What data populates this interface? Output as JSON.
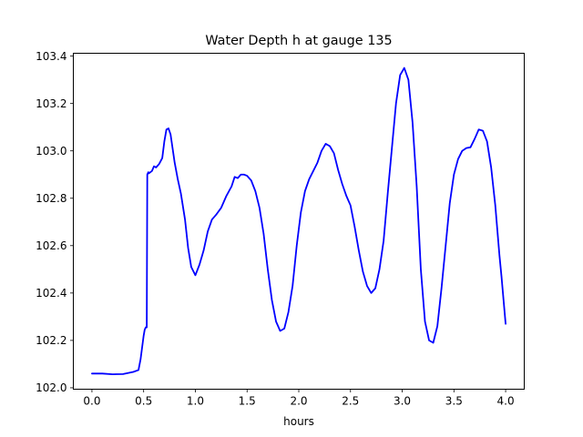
{
  "chart_data": {
    "type": "line",
    "title": "Water Depth h at gauge 135",
    "xlabel": "hours",
    "ylabel": "",
    "xlim": [
      -0.18,
      4.18
    ],
    "ylim": [
      101.994,
      103.412
    ],
    "x_ticks": [
      "0.0",
      "0.5",
      "1.0",
      "1.5",
      "2.0",
      "2.5",
      "3.0",
      "3.5",
      "4.0"
    ],
    "y_ticks": [
      "102.0",
      "102.2",
      "102.4",
      "102.6",
      "102.8",
      "103.0",
      "103.2",
      "103.4"
    ],
    "grid": false,
    "legend": "none",
    "line_color": "#0000ff",
    "series": [
      {
        "x": [
          0.0,
          0.1,
          0.2,
          0.3,
          0.4,
          0.45,
          0.47,
          0.5,
          0.51,
          0.52,
          0.53,
          0.535,
          0.545,
          0.55,
          0.58,
          0.6,
          0.62,
          0.65,
          0.68,
          0.7,
          0.72,
          0.74,
          0.76,
          0.78,
          0.8,
          0.83,
          0.86,
          0.9,
          0.93,
          0.96,
          1.0,
          1.04,
          1.08,
          1.12,
          1.16,
          1.2,
          1.25,
          1.3,
          1.35,
          1.38,
          1.41,
          1.44,
          1.47,
          1.5,
          1.54,
          1.58,
          1.62,
          1.66,
          1.7,
          1.74,
          1.78,
          1.82,
          1.86,
          1.9,
          1.94,
          1.98,
          2.02,
          2.06,
          2.1,
          2.14,
          2.18,
          2.22,
          2.26,
          2.3,
          2.34,
          2.38,
          2.42,
          2.46,
          2.5,
          2.54,
          2.58,
          2.62,
          2.66,
          2.7,
          2.74,
          2.78,
          2.82,
          2.86,
          2.9,
          2.94,
          2.98,
          3.02,
          3.06,
          3.1,
          3.14,
          3.18,
          3.22,
          3.26,
          3.3,
          3.34,
          3.38,
          3.42,
          3.46,
          3.5,
          3.54,
          3.58,
          3.62,
          3.66,
          3.7,
          3.74,
          3.78,
          3.82,
          3.86,
          3.9,
          3.94,
          3.96,
          3.98,
          4.0
        ],
        "y": [
          102.06,
          102.06,
          102.057,
          102.058,
          102.067,
          102.075,
          102.12,
          102.22,
          102.245,
          102.255,
          102.255,
          102.9,
          102.91,
          102.905,
          102.915,
          102.935,
          102.93,
          102.945,
          102.97,
          103.04,
          103.09,
          103.095,
          103.07,
          103.01,
          102.95,
          102.88,
          102.82,
          102.71,
          102.59,
          102.51,
          102.475,
          102.52,
          102.58,
          102.66,
          102.71,
          102.73,
          102.76,
          102.81,
          102.85,
          102.89,
          102.885,
          102.9,
          102.9,
          102.895,
          102.875,
          102.83,
          102.76,
          102.65,
          102.5,
          102.37,
          102.28,
          102.24,
          102.25,
          102.32,
          102.43,
          102.6,
          102.74,
          102.83,
          102.88,
          102.915,
          102.95,
          103.0,
          103.03,
          103.02,
          102.99,
          102.92,
          102.86,
          102.81,
          102.77,
          102.68,
          102.58,
          102.49,
          102.43,
          102.4,
          102.42,
          102.5,
          102.62,
          102.82,
          103.01,
          103.2,
          103.32,
          103.35,
          103.3,
          103.12,
          102.85,
          102.5,
          102.28,
          102.2,
          102.19,
          102.26,
          102.42,
          102.6,
          102.78,
          102.9,
          102.965,
          103.0,
          103.012,
          103.015,
          103.05,
          103.09,
          103.085,
          103.04,
          102.93,
          102.77,
          102.56,
          102.47,
          102.37,
          102.27
        ]
      }
    ]
  }
}
